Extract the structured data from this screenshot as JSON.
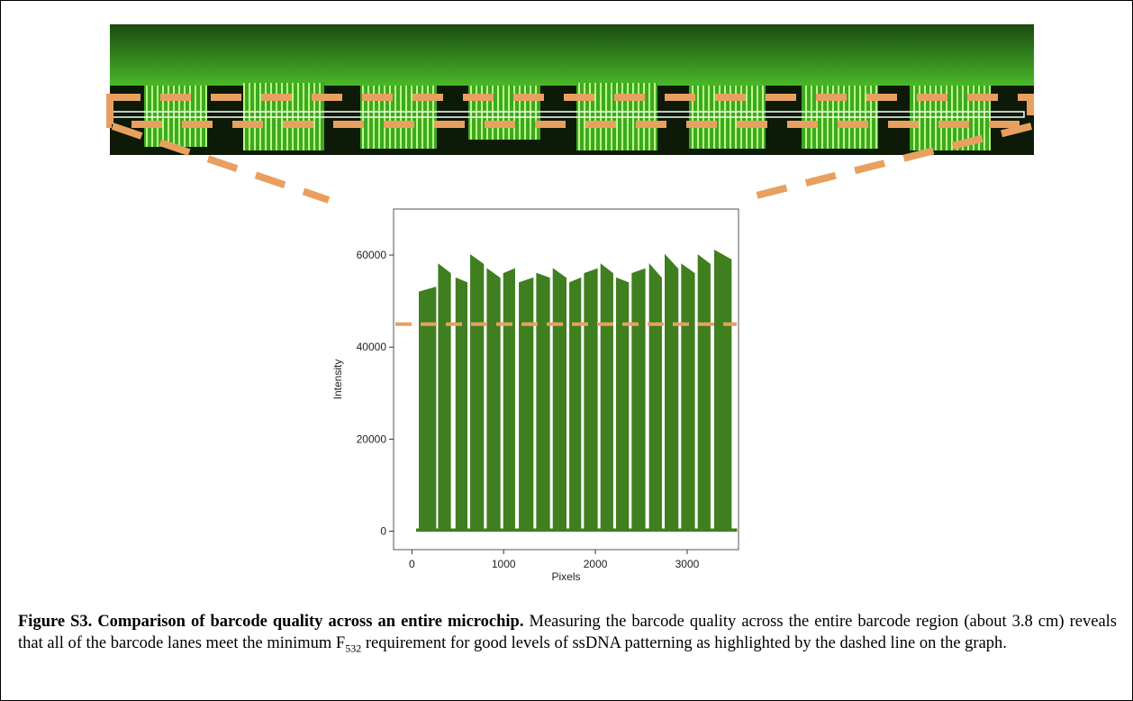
{
  "chart_data": {
    "type": "area",
    "x_label": "Pixels",
    "y_label": "Intensity",
    "color": "#3f7f1f",
    "x": [
      50,
      80,
      80,
      260,
      260,
      290,
      290,
      420,
      420,
      480,
      480,
      600,
      600,
      640,
      640,
      780,
      780,
      820,
      820,
      960,
      960,
      1000,
      1000,
      1120,
      1120,
      1170,
      1170,
      1320,
      1320,
      1360,
      1360,
      1500,
      1500,
      1540,
      1540,
      1680,
      1680,
      1720,
      1720,
      1840,
      1840,
      1880,
      1880,
      2020,
      2020,
      2060,
      2060,
      2190,
      2190,
      2230,
      2230,
      2360,
      2360,
      2400,
      2400,
      2540,
      2540,
      2590,
      2590,
      2720,
      2720,
      2760,
      2760,
      2900,
      2900,
      2940,
      2940,
      3080,
      3080,
      3120,
      3120,
      3250,
      3250,
      3300,
      3300,
      3480,
      3480,
      3540
    ],
    "y": [
      500,
      500,
      52000,
      53000,
      500,
      500,
      58000,
      56000,
      500,
      500,
      55000,
      54000,
      500,
      500,
      60000,
      58000,
      500,
      500,
      57000,
      55000,
      500,
      500,
      56000,
      57000,
      500,
      500,
      54000,
      55000,
      500,
      500,
      56000,
      55000,
      500,
      500,
      57000,
      55000,
      500,
      500,
      54000,
      55000,
      500,
      500,
      56000,
      57000,
      500,
      500,
      58000,
      56000,
      500,
      500,
      55000,
      54000,
      500,
      500,
      56000,
      57000,
      500,
      500,
      58000,
      55000,
      500,
      500,
      60000,
      57000,
      500,
      500,
      58000,
      56000,
      500,
      500,
      60000,
      58000,
      500,
      500,
      61000,
      59000,
      500,
      500
    ],
    "threshold": 45000,
    "threshold_color": "#e8a060",
    "xlim": [
      -200,
      3560
    ],
    "xticks": [
      0,
      1000,
      2000,
      3000
    ],
    "ylim": [
      -4000,
      70000
    ],
    "yticks": [
      0,
      20000,
      40000,
      60000
    ]
  },
  "caption": {
    "label": "Figure S3. Comparison of barcode quality across an entire microchip.",
    "text_before": "Measuring the barcode quality across the entire barcode region (about 3.8 cm) reveals that all of the barcode lanes meet the minimum F",
    "subscript": "532",
    "text_after": "requirement for good levels of ssDNA patterning as highlighted by the dashed line on the graph."
  }
}
